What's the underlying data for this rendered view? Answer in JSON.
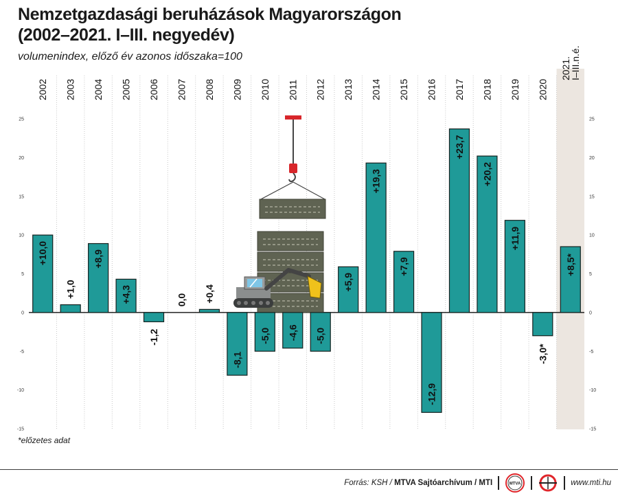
{
  "header": {
    "title_line1": "Nemzetgazdasági beruházások Magyarországon",
    "title_line2": "(2002–2021. I–III. negyedév)",
    "subtitle": "volumenindex, előző év azonos időszaka=100"
  },
  "footnote": "*előzetes adat",
  "footer": {
    "source_prefix": "Forrás: KSH / ",
    "source_bold": "MTVA Sajtóarchívum / MTI",
    "logo_text": "MTVA",
    "website": "www.mti.hu"
  },
  "colors": {
    "bar": "#1f9a98",
    "bar_stroke": "#16211f",
    "highlight_bg": "#ece6e0",
    "grid": "#c7c7c7",
    "logo_red": "#e0262b"
  },
  "illustration": {
    "icons": [
      "construction-crane-icon",
      "excavator-icon"
    ]
  },
  "chart_data": {
    "type": "bar",
    "categories": [
      "2002",
      "2003",
      "2004",
      "2005",
      "2006",
      "2007",
      "2008",
      "2009",
      "2010",
      "2011",
      "2012",
      "2013",
      "2014",
      "2015",
      "2016",
      "2017",
      "2018",
      "2019",
      "2020",
      "2021. I–III.n.é."
    ],
    "values": [
      10.0,
      1.0,
      8.9,
      4.3,
      -1.2,
      0.0,
      0.4,
      -8.1,
      -5.0,
      -4.6,
      -5.0,
      5.9,
      19.3,
      7.9,
      -12.9,
      23.7,
      20.2,
      11.9,
      -3.0,
      8.5
    ],
    "data_labels": [
      "+10,0",
      "+1,0",
      "+8,9",
      "+4,3",
      "-1,2",
      "0,0",
      "+0,4",
      "-8,1",
      "-5,0",
      "-4,6",
      "-5,0",
      "+5,9",
      "+19,3",
      "+7,9",
      "-12,9",
      "+23,7",
      "+20,2",
      "+11,9",
      "-3,0*",
      "+8,5*"
    ],
    "title": "Nemzetgazdasági beruházások Magyarországon (2002–2021. I–III. negyedév)",
    "subtitle": "volumenindex, előző év azonos időszaka=100",
    "ylim": [
      -15,
      25
    ],
    "yticks": [
      25,
      20,
      15,
      10,
      5,
      0,
      -5,
      -10,
      -15
    ],
    "ytick_labels": [
      "25",
      "20",
      "15",
      "10",
      "5",
      "0",
      "-5",
      "-10",
      "-15"
    ],
    "grid": true,
    "highlighted_category": "2021. I–III.n.é."
  }
}
